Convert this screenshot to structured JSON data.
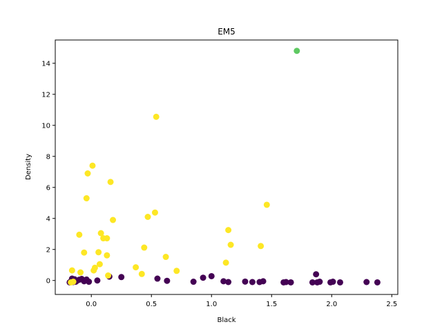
{
  "chart_data": {
    "type": "scatter",
    "title": "EM5",
    "xlabel": "Black",
    "ylabel": "Density",
    "xlim": [
      -0.3,
      2.55
    ],
    "ylim": [
      -0.9,
      15.5
    ],
    "xticks": [
      0.0,
      0.5,
      1.0,
      1.5,
      2.0,
      2.5
    ],
    "xtick_labels": [
      "0.0",
      "0.5",
      "1.0",
      "1.5",
      "2.0",
      "2.5"
    ],
    "yticks": [
      0,
      2,
      4,
      6,
      8,
      10,
      12,
      14
    ],
    "ytick_labels": [
      "0",
      "2",
      "4",
      "6",
      "8",
      "10",
      "12",
      "14"
    ],
    "grid": false,
    "legend": "none",
    "colors": {
      "purple": "#440154",
      "yellow": "#fde725",
      "green": "#5ec962"
    },
    "series": [
      {
        "color": "#440154",
        "points": [
          [
            -0.18,
            -0.12
          ],
          [
            -0.17,
            -0.05
          ],
          [
            -0.16,
            0.12
          ],
          [
            -0.15,
            -0.1
          ],
          [
            -0.14,
            0.08
          ],
          [
            -0.13,
            -0.08
          ],
          [
            -0.12,
            -0.02
          ],
          [
            -0.1,
            0.05
          ],
          [
            -0.08,
            0.1
          ],
          [
            -0.06,
            -0.05
          ],
          [
            -0.04,
            0.06
          ],
          [
            -0.02,
            -0.08
          ],
          [
            0.05,
            0.0
          ],
          [
            0.15,
            0.25
          ],
          [
            0.25,
            0.22
          ],
          [
            0.55,
            0.12
          ],
          [
            0.63,
            -0.02
          ],
          [
            0.85,
            -0.08
          ],
          [
            0.93,
            0.18
          ],
          [
            1.0,
            0.28
          ],
          [
            1.1,
            -0.05
          ],
          [
            1.14,
            -0.1
          ],
          [
            1.28,
            -0.07
          ],
          [
            1.34,
            -0.1
          ],
          [
            1.4,
            -0.1
          ],
          [
            1.43,
            -0.05
          ],
          [
            1.6,
            -0.12
          ],
          [
            1.62,
            -0.1
          ],
          [
            1.66,
            -0.12
          ],
          [
            1.84,
            -0.12
          ],
          [
            1.87,
            0.4
          ],
          [
            1.88,
            -0.12
          ],
          [
            1.9,
            -0.08
          ],
          [
            1.99,
            -0.12
          ],
          [
            2.01,
            -0.08
          ],
          [
            2.07,
            -0.12
          ],
          [
            2.29,
            -0.1
          ],
          [
            2.38,
            -0.12
          ]
        ]
      },
      {
        "color": "#fde725",
        "points": [
          [
            -0.17,
            -0.12
          ],
          [
            -0.16,
            0.65
          ],
          [
            -0.15,
            -0.08
          ],
          [
            -0.1,
            2.95
          ],
          [
            -0.09,
            0.52
          ],
          [
            -0.06,
            1.8
          ],
          [
            -0.04,
            5.3
          ],
          [
            -0.03,
            6.9
          ],
          [
            0.01,
            7.4
          ],
          [
            0.02,
            0.65
          ],
          [
            0.03,
            0.82
          ],
          [
            0.06,
            1.82
          ],
          [
            0.07,
            1.05
          ],
          [
            0.08,
            3.05
          ],
          [
            0.1,
            2.72
          ],
          [
            0.13,
            2.72
          ],
          [
            0.13,
            1.62
          ],
          [
            0.14,
            0.32
          ],
          [
            0.16,
            6.35
          ],
          [
            0.18,
            3.9
          ],
          [
            0.37,
            0.85
          ],
          [
            0.42,
            0.42
          ],
          [
            0.44,
            2.12
          ],
          [
            0.47,
            4.1
          ],
          [
            0.53,
            4.38
          ],
          [
            0.54,
            10.55
          ],
          [
            0.62,
            1.52
          ],
          [
            0.71,
            0.62
          ],
          [
            1.12,
            1.15
          ],
          [
            1.14,
            3.25
          ],
          [
            1.16,
            2.3
          ],
          [
            1.41,
            2.22
          ],
          [
            1.46,
            4.88
          ]
        ]
      },
      {
        "color": "#5ec962",
        "points": [
          [
            1.71,
            14.8
          ]
        ]
      }
    ]
  }
}
